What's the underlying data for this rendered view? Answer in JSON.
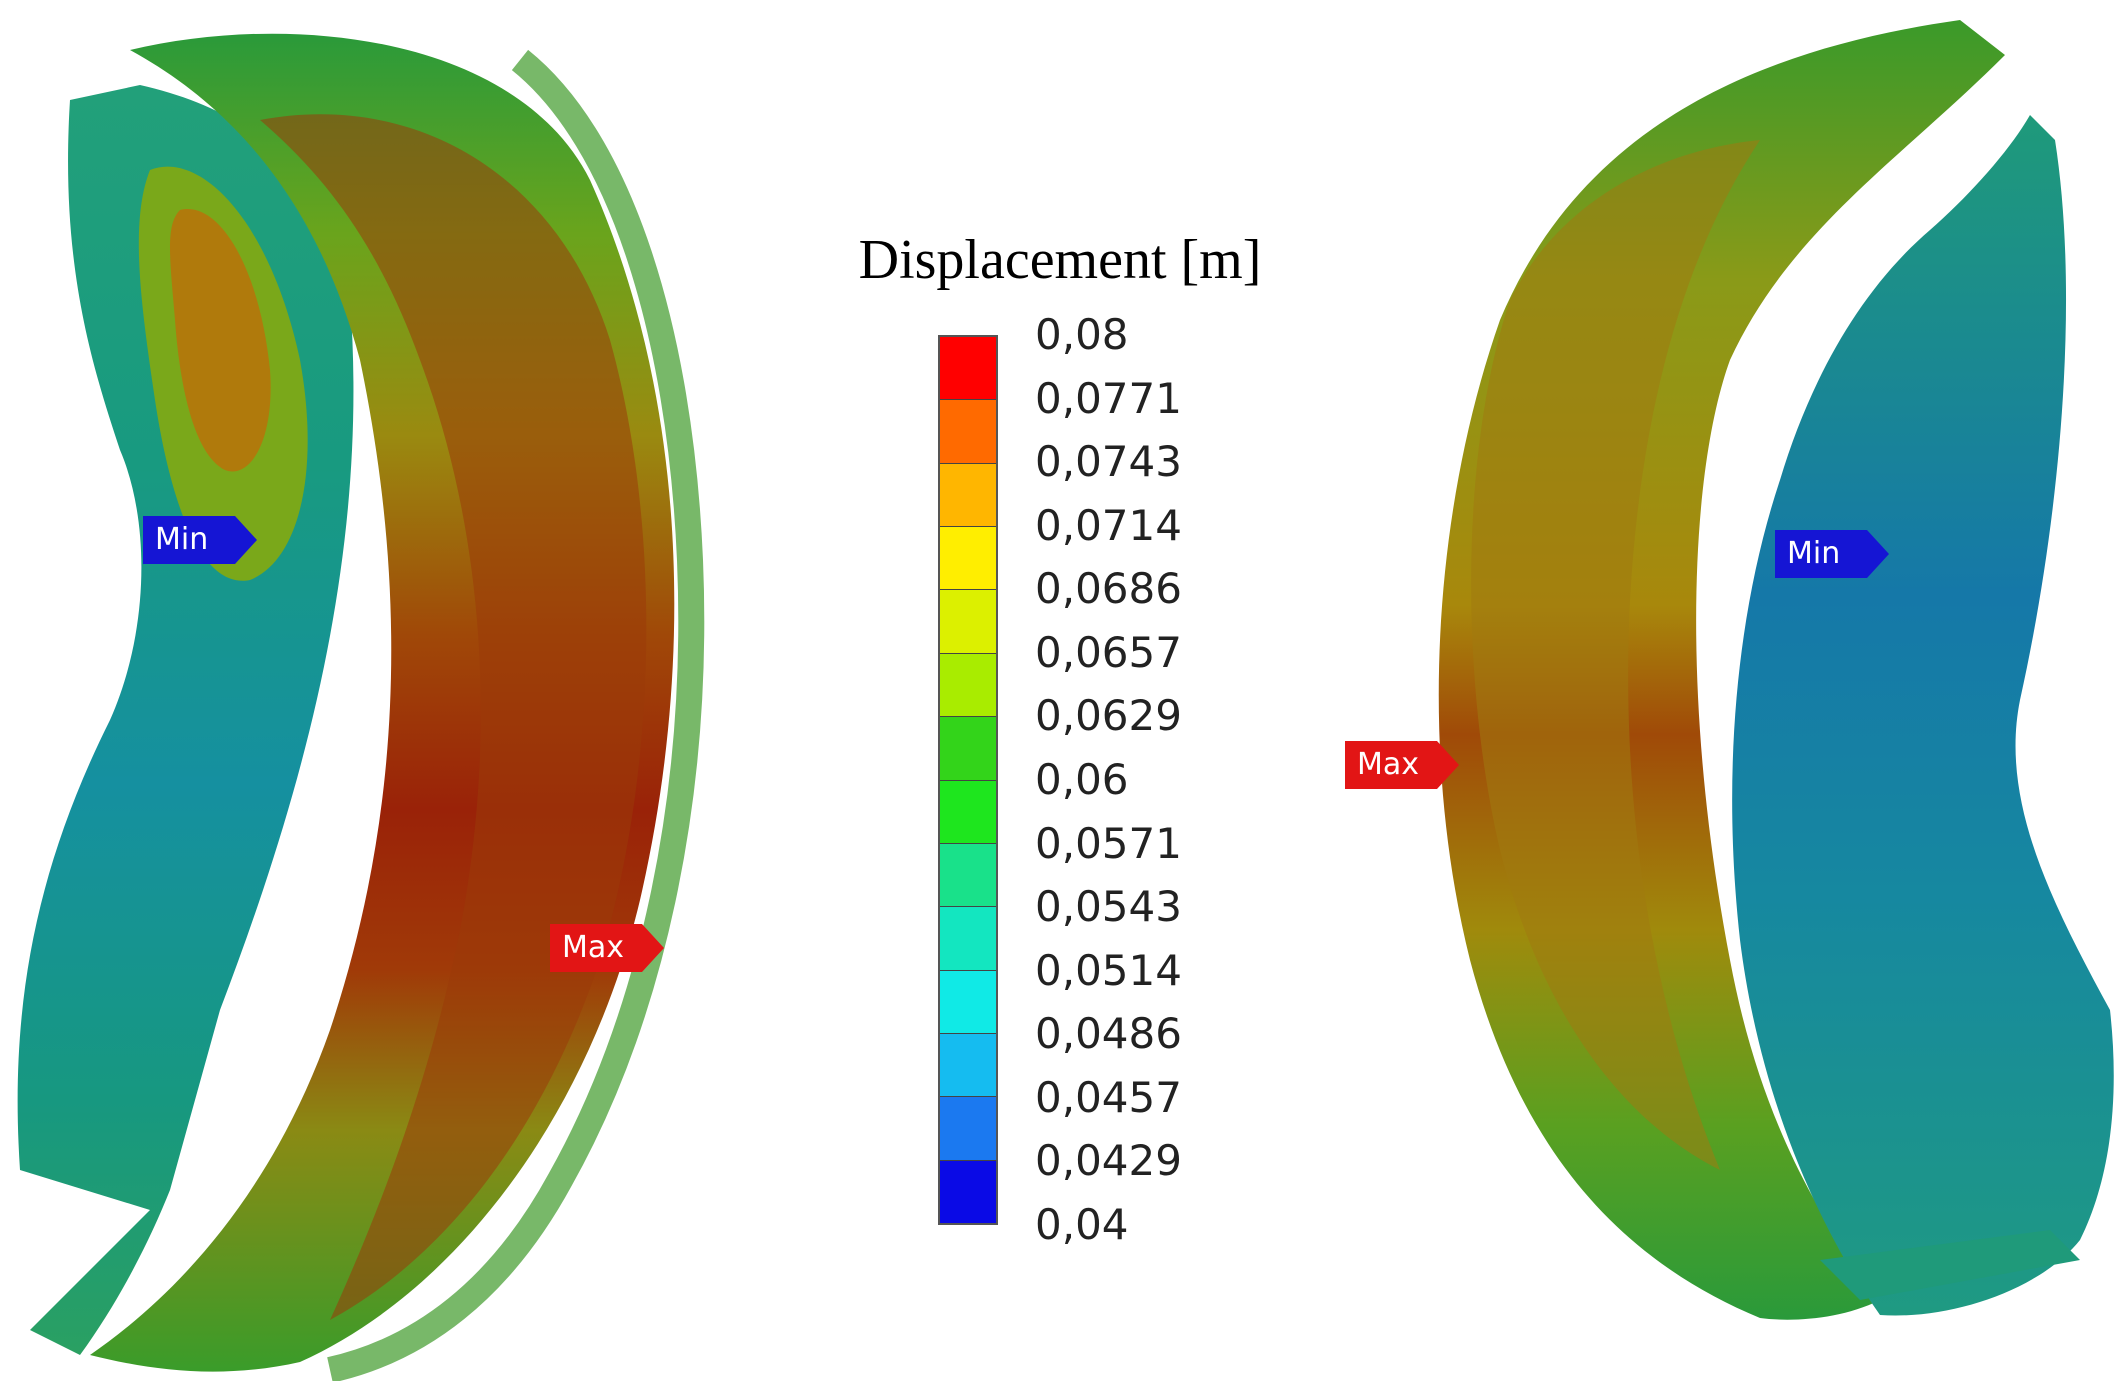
{
  "legend": {
    "title": "Displacement [m]",
    "ticks": [
      "0,08",
      "0,0771",
      "0,0743",
      "0,0714",
      "0,0686",
      "0,0657",
      "0,0629",
      "0,06",
      "0,0571",
      "0,0543",
      "0,0514",
      "0,0486",
      "0,0457",
      "0,0429",
      "0,04"
    ],
    "colors": [
      "#ff0000",
      "#ff6a00",
      "#ffb600",
      "#ffee00",
      "#dcf000",
      "#a9ec00",
      "#33d41a",
      "#1ee61e",
      "#19e18a",
      "#13e6c0",
      "#10eae6",
      "#15bcf0",
      "#1b79f0",
      "#0a0ae6"
    ]
  },
  "markers": {
    "left_min": "Min",
    "left_max": "Max",
    "right_min": "Min",
    "right_max": "Max"
  }
}
